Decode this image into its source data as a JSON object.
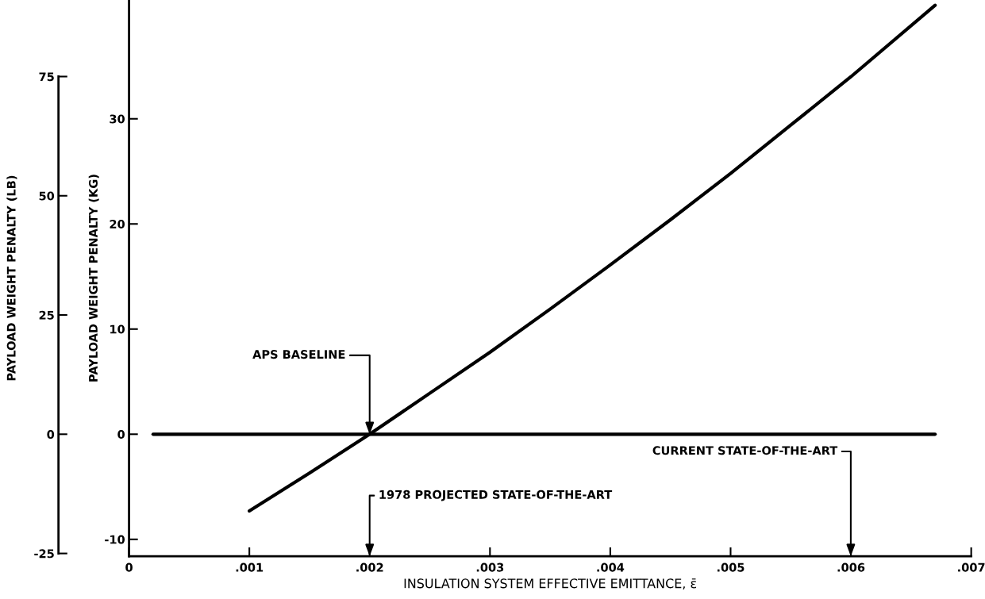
{
  "chart_data": {
    "type": "line",
    "xlabel": "INSULATION SYSTEM EFFECTIVE EMITTANCE, ε̄",
    "ylabel": "PAYLOAD WEIGHT PENALTY (KG)",
    "y2label": "PAYLOAD WEIGHT PENALTY (LB)",
    "series": [
      {
        "color": "#000000",
        "x": [
          0.001,
          0.0015,
          0.002,
          0.0025,
          0.003,
          0.0035,
          0.004,
          0.0045,
          0.005,
          0.0055,
          0.006,
          0.0067
        ],
        "values": [
          -7.3,
          -3.7,
          0,
          3.9,
          7.8,
          11.9,
          16.1,
          20.4,
          24.8,
          29.4,
          34.0,
          40.8
        ]
      },
      {
        "color": "#000000",
        "x": [
          0.0002,
          0.0067
        ],
        "values": [
          0,
          0
        ]
      }
    ],
    "xlim": [
      0,
      0.007
    ],
    "xticks": [
      0,
      {
        "value": 0.001,
        "label": ".001"
      },
      {
        "value": 0.002,
        "label": ".002"
      },
      {
        "value": 0.003,
        "label": ".003"
      },
      {
        "value": 0.004,
        "label": ".004"
      },
      {
        "value": 0.005,
        "label": ".005"
      },
      {
        "value": 0.006,
        "label": ".006"
      },
      {
        "value": 0.007,
        "label": ".007"
      }
    ],
    "ylim": [
      -11.6,
      41.3
    ],
    "yticks": [
      -10,
      0,
      10,
      20,
      30
    ],
    "y2lim": [
      -25.57,
      91.05
    ],
    "y2ticks": [
      -25,
      0,
      25,
      50,
      75
    ],
    "annotations": [
      {
        "text": "APS BASELINE",
        "x": 0.002,
        "y": 0
      },
      "1978 PROJECTED STATE-OF-THE-ART",
      "CURRENT STATE-OF-THE-ART"
    ],
    "grid": false,
    "legend": false,
    "marker": "none",
    "line_style": "solid"
  }
}
